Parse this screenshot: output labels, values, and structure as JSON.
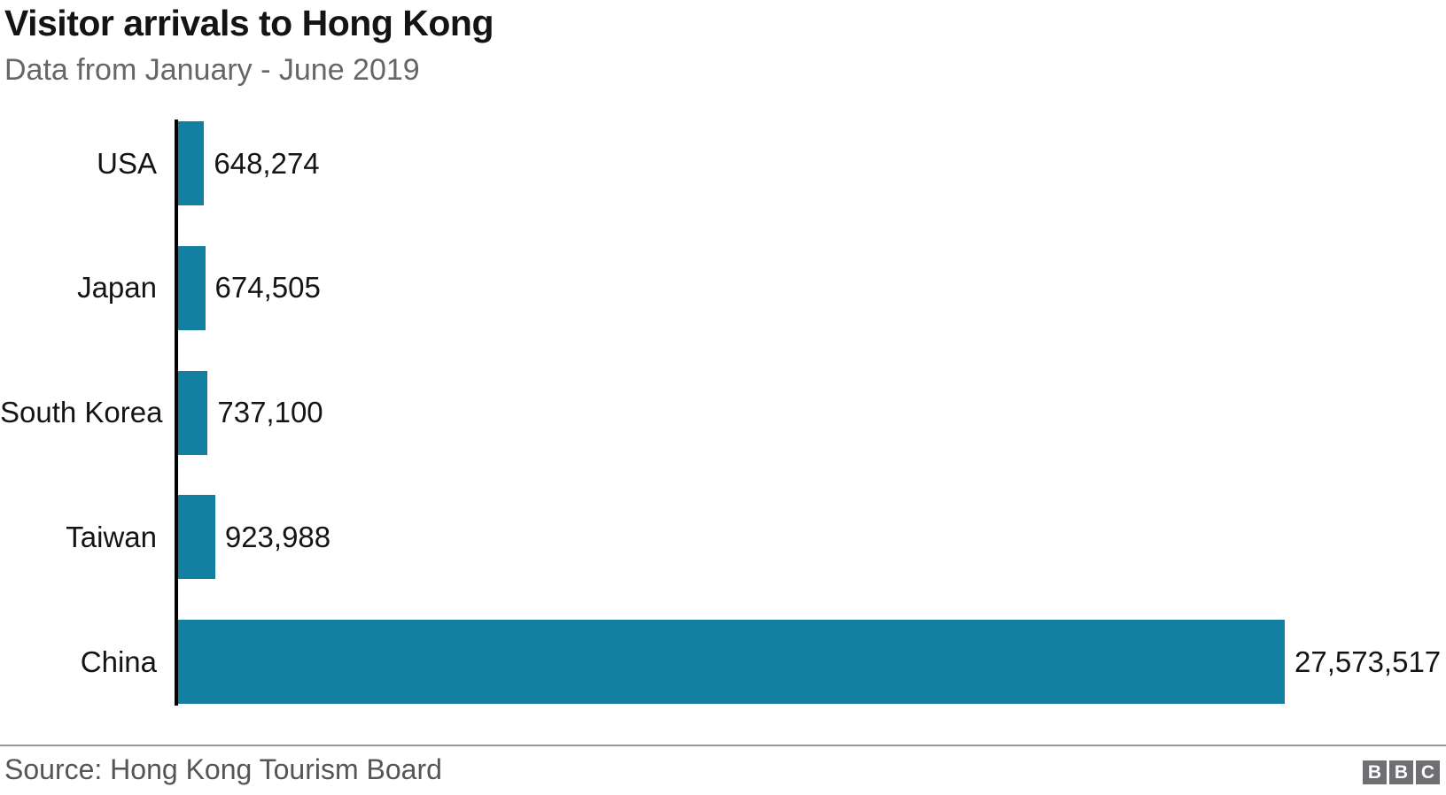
{
  "header": {
    "title": "Visitor arrivals to Hong Kong",
    "subtitle": "Data from January - June 2019"
  },
  "chart_data": {
    "type": "bar",
    "orientation": "horizontal",
    "title": "Visitor arrivals to Hong Kong",
    "subtitle": "Data from January - June 2019",
    "categories": [
      "USA",
      "Japan",
      "South Korea",
      "Taiwan",
      "China"
    ],
    "values": [
      648274,
      674505,
      737100,
      923988,
      27573517
    ],
    "value_labels": [
      "648,274",
      "674,505",
      "737,100",
      "923,988",
      "27,573,517"
    ],
    "xlabel": "",
    "ylabel": "",
    "xlim": [
      0,
      27573517
    ],
    "grid": false,
    "legend": false,
    "data_labels": true
  },
  "colors": {
    "bar": "#1380A1",
    "axis": "#000000",
    "title": "#141414",
    "subtitle": "#666666",
    "source": "#555555",
    "divider": "#999999",
    "logo_bg": "#6E6E73",
    "logo_text": "#FFFFFF"
  },
  "footer": {
    "source": "Source: Hong Kong Tourism Board",
    "logo": {
      "name": "BBC",
      "letters": [
        "B",
        "B",
        "C"
      ]
    }
  }
}
